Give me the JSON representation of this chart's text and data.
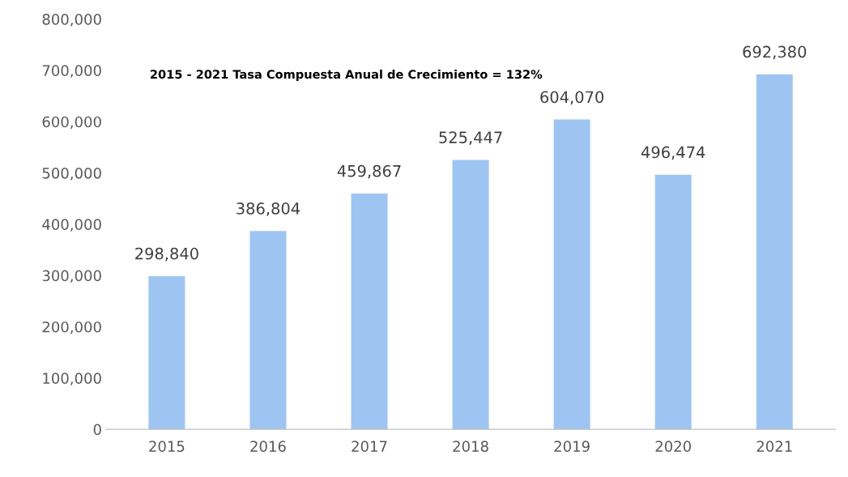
{
  "chart_data": {
    "type": "bar",
    "categories": [
      "2015",
      "2016",
      "2017",
      "2018",
      "2019",
      "2020",
      "2021"
    ],
    "values": [
      298840,
      386804,
      459867,
      525447,
      604070,
      496474,
      692380
    ],
    "value_labels": [
      "298,840",
      "386,804",
      "459,867",
      "525,447",
      "604,070",
      "496,474",
      "692,380"
    ],
    "color": "#9ec5f2",
    "ylim": [
      0,
      800000
    ],
    "yticks": [
      {
        "value": 0,
        "label": "0"
      },
      {
        "value": 100000,
        "label": "100,000"
      },
      {
        "value": 200000,
        "label": "200,000"
      },
      {
        "value": 300000,
        "label": "300,000"
      },
      {
        "value": 400000,
        "label": "400,000"
      },
      {
        "value": 500000,
        "label": "500,000"
      },
      {
        "value": 600000,
        "label": "600,000"
      },
      {
        "value": 700000,
        "label": "700,000"
      },
      {
        "value": 800000,
        "label": "800,000"
      }
    ],
    "annotations": [
      "2015 - 2021 Tasa Compuesta Anual de Crecimiento = 132%"
    ],
    "grid": false,
    "legend": false
  }
}
